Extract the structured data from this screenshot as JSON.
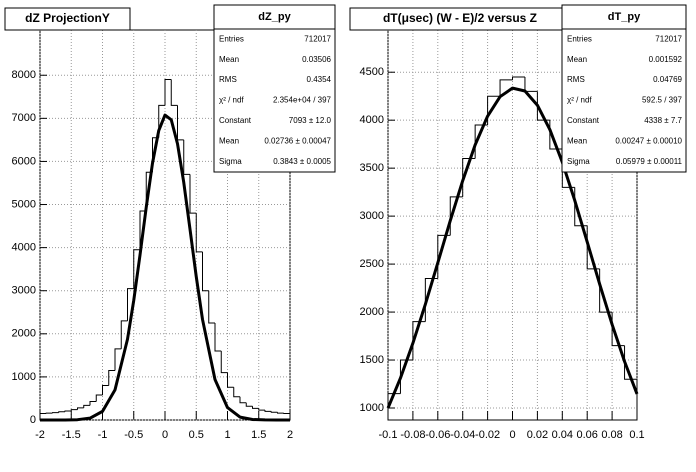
{
  "chart_data": [
    {
      "type": "histogram",
      "title": "dZ ProjectionY",
      "color": "#000000",
      "grid": true,
      "bins": [
        -2,
        -1.9,
        -1.8,
        -1.7,
        -1.6,
        -1.5,
        -1.4,
        -1.3,
        -1.2,
        -1.1,
        -1,
        -0.9,
        -0.8,
        -0.7,
        -0.6,
        -0.5,
        -0.4,
        -0.3,
        -0.2,
        -0.1,
        0,
        0.1,
        0.2,
        0.3,
        0.4,
        0.5,
        0.6,
        0.7,
        0.8,
        0.9,
        1,
        1.1,
        1.2,
        1.3,
        1.4,
        1.5,
        1.6,
        1.7,
        1.8,
        1.9,
        2
      ],
      "values": [
        150,
        160,
        170,
        190,
        210,
        240,
        280,
        340,
        430,
        580,
        800,
        1150,
        1650,
        2300,
        3050,
        3950,
        4850,
        5750,
        6550,
        7300,
        7900,
        7300,
        6500,
        5700,
        4800,
        3900,
        3000,
        2250,
        1600,
        1100,
        760,
        540,
        400,
        320,
        270,
        230,
        200,
        180,
        160,
        150
      ],
      "fit": {
        "x": [
          -2,
          -1.8,
          -1.6,
          -1.4,
          -1.2,
          -1,
          -0.8,
          -0.6,
          -0.5,
          -0.4,
          -0.3,
          -0.2,
          -0.1,
          0,
          0.1,
          0.2,
          0.3,
          0.4,
          0.5,
          0.6,
          0.8,
          1,
          1.2,
          1.4,
          1.6,
          1.8,
          2
        ],
        "values": [
          0,
          0,
          1,
          7,
          43,
          200,
          700,
          1875,
          2776,
          3828,
          4939,
          5960,
          6716,
          7075,
          6966,
          6411,
          5513,
          4428,
          3327,
          2335,
          939,
          288,
          67,
          12,
          2,
          0,
          0
        ]
      },
      "xlim": [
        -2,
        2
      ],
      "xticks": [
        -2,
        -1.5,
        -1,
        -0.5,
        0,
        0.5,
        1,
        1.5,
        2
      ],
      "ylim": [
        0,
        9050
      ],
      "yticks": [
        0,
        1000,
        2000,
        3000,
        4000,
        5000,
        6000,
        7000,
        8000
      ],
      "stats": {
        "title": "dZ_py",
        "rows": [
          [
            "Entries",
            "712017"
          ],
          [
            "Mean",
            "0.03506"
          ],
          [
            "RMS",
            "0.4354"
          ],
          [
            "χ² / ndf",
            "2.354e+04 / 397"
          ],
          [
            "Constant",
            "7093 ± 12.0"
          ],
          [
            "Mean",
            "0.02736 ± 0.00047"
          ],
          [
            "Sigma",
            "0.3843 ± 0.0005"
          ]
        ]
      }
    },
    {
      "type": "histogram",
      "title": "dT(μsec) (W - E)/2 versus Z",
      "color": "#000000",
      "grid": true,
      "bins": [
        -0.1,
        -0.09,
        -0.08,
        -0.07,
        -0.06,
        -0.05,
        -0.04,
        -0.03,
        -0.02,
        -0.01,
        0,
        0.01,
        0.02,
        0.03,
        0.04,
        0.05,
        0.06,
        0.07,
        0.08,
        0.09,
        0.1
      ],
      "values": [
        1150,
        1500,
        1900,
        2350,
        2800,
        3200,
        3600,
        3950,
        4250,
        4420,
        4450,
        4300,
        4000,
        3700,
        3300,
        2900,
        2450,
        2000,
        1650,
        1300
      ],
      "fit": {
        "x": [
          -0.1,
          -0.09,
          -0.08,
          -0.07,
          -0.06,
          -0.05,
          -0.04,
          -0.03,
          -0.02,
          -0.01,
          0,
          0.01,
          0.02,
          0.03,
          0.04,
          0.05,
          0.06,
          0.07,
          0.08,
          0.09,
          0.1
        ],
        "values": [
          999,
          1312,
          1676,
          2081,
          2513,
          2952,
          3369,
          3743,
          4042,
          4245,
          4334,
          4304,
          4156,
          3902,
          3562,
          3164,
          2731,
          2292,
          1871,
          1485,
          1147
        ]
      },
      "xlim": [
        -0.1,
        0.1
      ],
      "xticks": [
        -0.1,
        -0.08,
        -0.06,
        -0.04,
        -0.02,
        0,
        0.02,
        0.04,
        0.06,
        0.08,
        0.1
      ],
      "ylim": [
        875,
        4940
      ],
      "yticks": [
        1000,
        1500,
        2000,
        2500,
        3000,
        3500,
        4000,
        4500
      ],
      "stats": {
        "title": "dT_py",
        "rows": [
          [
            "Entries",
            "712017"
          ],
          [
            "Mean",
            "0.001592"
          ],
          [
            "RMS",
            "0.04769"
          ],
          [
            "χ² / ndf",
            "592.5 / 397"
          ],
          [
            "Constant",
            "4338 ± 7.7"
          ],
          [
            "Mean",
            "0.00247 ± 0.00010"
          ],
          [
            "Sigma",
            "0.05979 ± 0.00011"
          ]
        ]
      }
    }
  ]
}
